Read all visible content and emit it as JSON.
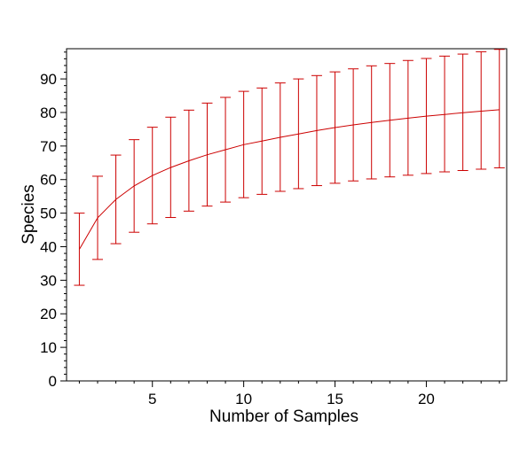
{
  "chart_data": {
    "type": "line",
    "title": "",
    "xlabel": "Number of Samples",
    "ylabel": "Species",
    "xlim": [
      0.3,
      24.4
    ],
    "ylim": [
      0,
      99
    ],
    "x_ticks": [
      5,
      10,
      15,
      20
    ],
    "y_ticks": [
      0,
      10,
      20,
      30,
      40,
      50,
      60,
      70,
      80,
      90
    ],
    "grid": false,
    "legend": "none",
    "series": [
      {
        "color": "#cc0000",
        "x": [
          1,
          2,
          3,
          4,
          5,
          6,
          7,
          8,
          9,
          10,
          11,
          12,
          13,
          14,
          15,
          16,
          17,
          18,
          19,
          20,
          21,
          22,
          23,
          24
        ],
        "y": [
          39.2,
          48.6,
          54.1,
          58.1,
          61.2,
          63.6,
          65.6,
          67.4,
          68.9,
          70.4,
          71.5,
          72.6,
          73.6,
          74.6,
          75.5,
          76.3,
          77.0,
          77.7,
          78.3,
          78.9,
          79.4,
          79.9,
          80.4,
          80.8
        ],
        "error_low": [
          28.5,
          36.2,
          40.9,
          44.3,
          46.8,
          48.7,
          50.6,
          52.1,
          53.3,
          54.6,
          55.6,
          56.5,
          57.3,
          58.2,
          58.9,
          59.6,
          60.2,
          60.8,
          61.3,
          61.8,
          62.3,
          62.7,
          63.1,
          63.5
        ],
        "error_high": [
          50.0,
          61.0,
          67.3,
          71.9,
          75.6,
          78.6,
          80.7,
          82.8,
          84.5,
          86.3,
          87.3,
          88.8,
          90.0,
          91.0,
          92.1,
          93.0,
          93.9,
          94.6,
          95.5,
          96.1,
          96.8,
          97.4,
          98.1,
          98.8
        ]
      }
    ]
  }
}
